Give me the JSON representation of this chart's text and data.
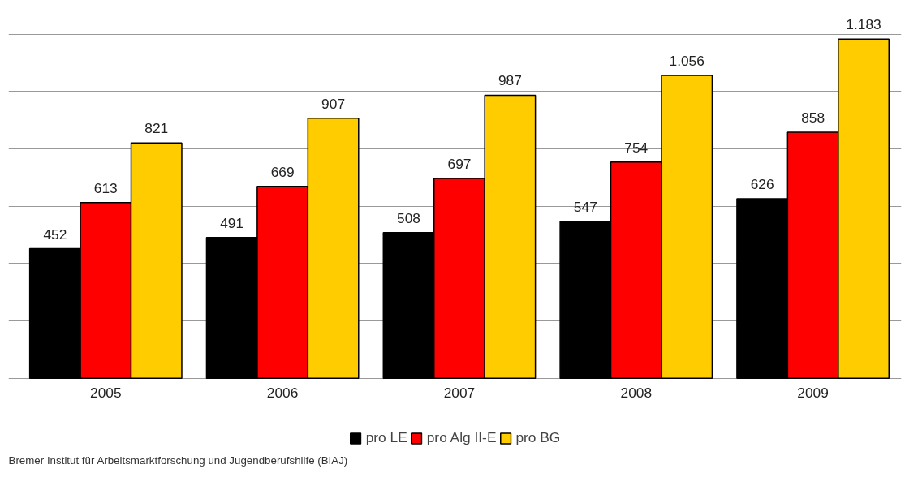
{
  "chart_data": {
    "type": "bar",
    "categories": [
      "2005",
      "2006",
      "2007",
      "2008",
      "2009"
    ],
    "series": [
      {
        "name": "pro LE",
        "color": "#000000",
        "values": [
          452,
          491,
          508,
          547,
          626
        ],
        "value_labels": [
          "452",
          "491",
          "508",
          "547",
          "626"
        ]
      },
      {
        "name": "pro Alg II-E",
        "color": "#ff0000",
        "values": [
          613,
          669,
          697,
          754,
          858
        ],
        "value_labels": [
          "613",
          "669",
          "697",
          "754",
          "858"
        ]
      },
      {
        "name": "pro BG",
        "color": "#ffcc00",
        "values": [
          821,
          907,
          987,
          1056,
          1183
        ],
        "value_labels": [
          "821",
          "907",
          "987",
          "1.056",
          "1.183"
        ]
      }
    ],
    "yticks": [
      {
        "value": 0,
        "label": null
      },
      {
        "value": 200,
        "label": null
      },
      {
        "value": 400,
        "label": null
      },
      {
        "value": 600,
        "label": null
      },
      {
        "value": 800,
        "label": null
      },
      {
        "value": 1000,
        "label": null
      },
      {
        "value": 1200,
        "label": null
      }
    ],
    "tick_labels": "x",
    "grid": "y",
    "legend": "bottom",
    "annotations": [
      "Bremer Institut für Arbeitsmarktforschung und Jugendberufshilfe (BIAJ)"
    ]
  }
}
